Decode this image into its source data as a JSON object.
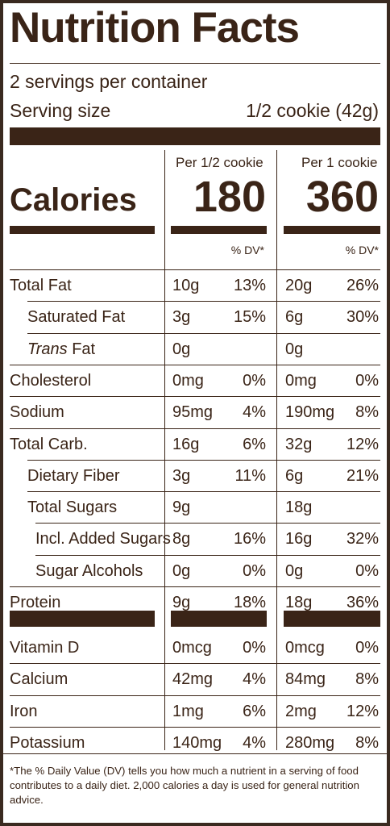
{
  "title": "Nutrition Facts",
  "servings_per_container": "2 servings per container",
  "serving_size_label": "Serving size",
  "serving_size_value": "1/2 cookie (42g)",
  "col1_header": "Per 1/2 cookie",
  "col2_header": "Per 1 cookie",
  "calories_label": "Calories",
  "calories_col1": "180",
  "calories_col2": "360",
  "dv_header": "% DV*",
  "nutrients": [
    {
      "name": "Total Fat",
      "a1": "10g",
      "p1": "13%",
      "a2": "20g",
      "p2": "26%"
    },
    {
      "name": "Saturated Fat",
      "a1": "3g",
      "p1": "15%",
      "a2": "6g",
      "p2": "30%"
    },
    {
      "name_italic": "Trans",
      "name_rest": " Fat",
      "a1": "0g",
      "p1": "",
      "a2": "0g",
      "p2": ""
    },
    {
      "name": "Cholesterol",
      "a1": "0mg",
      "p1": "0%",
      "a2": "0mg",
      "p2": "0%"
    },
    {
      "name": "Sodium",
      "a1": "95mg",
      "p1": "4%",
      "a2": "190mg",
      "p2": "8%"
    },
    {
      "name": "Total Carb.",
      "a1": "16g",
      "p1": "6%",
      "a2": "32g",
      "p2": "12%"
    },
    {
      "name": "Dietary Fiber",
      "a1": "3g",
      "p1": "11%",
      "a2": "6g",
      "p2": "21%"
    },
    {
      "name": "Total Sugars",
      "a1": "9g",
      "p1": "",
      "a2": "18g",
      "p2": ""
    },
    {
      "name": "Incl. Added Sugars",
      "a1": "8g",
      "p1": "16%",
      "a2": "16g",
      "p2": "32%"
    },
    {
      "name": "Sugar Alcohols",
      "a1": "0g",
      "p1": "0%",
      "a2": "0g",
      "p2": "0%"
    },
    {
      "name": "Protein",
      "a1": "9g",
      "p1": "18%",
      "a2": "18g",
      "p2": "36%"
    }
  ],
  "vitamins": [
    {
      "name": "Vitamin D",
      "a1": "0mcg",
      "p1": "0%",
      "a2": "0mcg",
      "p2": "0%"
    },
    {
      "name": "Calcium",
      "a1": "42mg",
      "p1": "4%",
      "a2": "84mg",
      "p2": "8%"
    },
    {
      "name": "Iron",
      "a1": "1mg",
      "p1": "6%",
      "a2": "2mg",
      "p2": "12%"
    },
    {
      "name": "Potassium",
      "a1": "140mg",
      "p1": "4%",
      "a2": "280mg",
      "p2": "8%"
    }
  ],
  "footnote": "*The % Daily Value (DV) tells you how much a nutrient in a serving of food contributes to a daily diet. 2,000 calories a day is used for general nutrition advice.",
  "colors": {
    "ink": "#3a2417",
    "border": "#3a2a20"
  }
}
